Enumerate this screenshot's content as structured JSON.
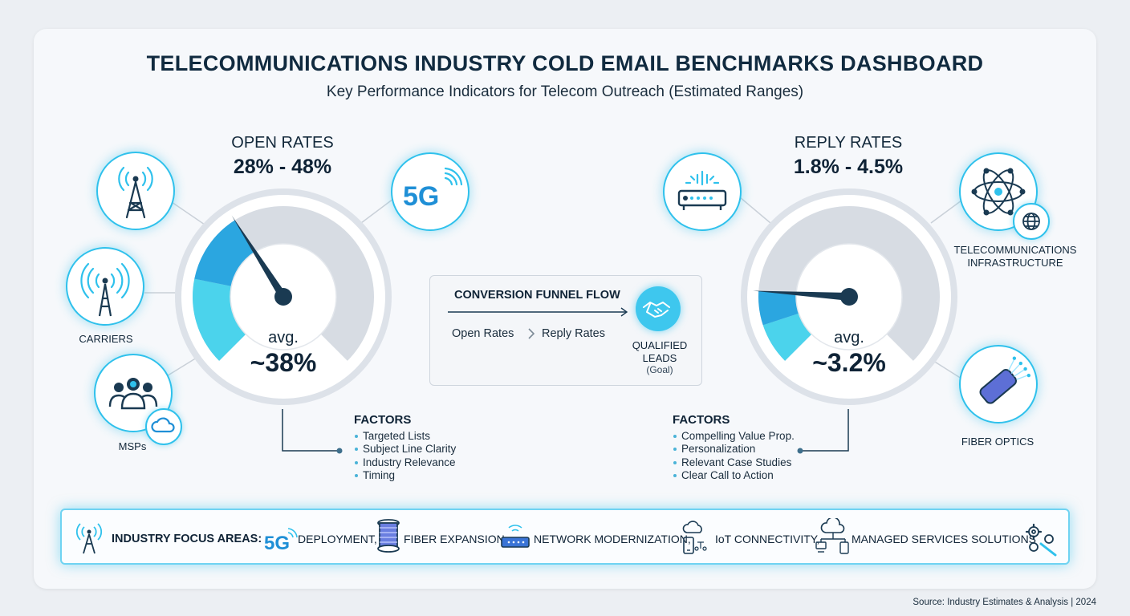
{
  "header": {
    "title": "TELECOMMUNICATIONS INDUSTRY COLD EMAIL BENCHMARKS DASHBOARD",
    "subtitle": "Key Performance Indicators for Telecom Outreach (Estimated Ranges)"
  },
  "open_rates": {
    "label": "OPEN RATES",
    "range": "28% - 48%",
    "avg_label": "avg.",
    "avg_value": "~38%",
    "gauge_fraction": 0.38,
    "factors_title": "FACTORS",
    "factors": [
      "Targeted Lists",
      "Subject Line Clarity",
      "Industry Relevance",
      "Timing"
    ]
  },
  "reply_rates": {
    "label": "REPLY RATES",
    "range": "1.8% - 4.5%",
    "avg_label": "avg.",
    "avg_value": "~3.2%",
    "gauge_fraction": 0.18,
    "factors_title": "FACTORS",
    "factors": [
      "Compelling Value Prop.",
      "Personalization",
      "Relevant Case Studies",
      "Clear Call to Action"
    ]
  },
  "left_icons": {
    "carriers": "CARRIERS",
    "msps": "MSPs",
    "five_g": "5G"
  },
  "right_icons": {
    "infrastructure_line1": "TELECOMMUNICATIONS",
    "infrastructure_line2": "INFRASTRUCTURE",
    "fiber": "FIBER OPTICS"
  },
  "funnel": {
    "title": "CONVERSION FUNNEL FLOW",
    "step1": "Open Rates",
    "step2": "Reply Rates",
    "goal_line1": "QUALIFIED",
    "goal_line2": "LEADS",
    "goal_note": "(Goal)"
  },
  "focus": {
    "label": "INDUSTRY FOCUS AREAS:",
    "five_g": "5G",
    "deployment": "DEPLOYMENT,",
    "fiber": "FIBER EXPANSION,",
    "network": "NETWORK MODERNIZATION,",
    "iot": "IoT CONNECTIVITY,",
    "managed": "MANAGED SERVICES SOLUTIONS"
  },
  "source": "Source: Industry Estimates & Analysis | 2024",
  "colors": {
    "accent": "#2fc1ec",
    "navy": "#1a3a52",
    "gauge_fill": "#4bd3ec",
    "gauge_track": "#d7dce3"
  }
}
